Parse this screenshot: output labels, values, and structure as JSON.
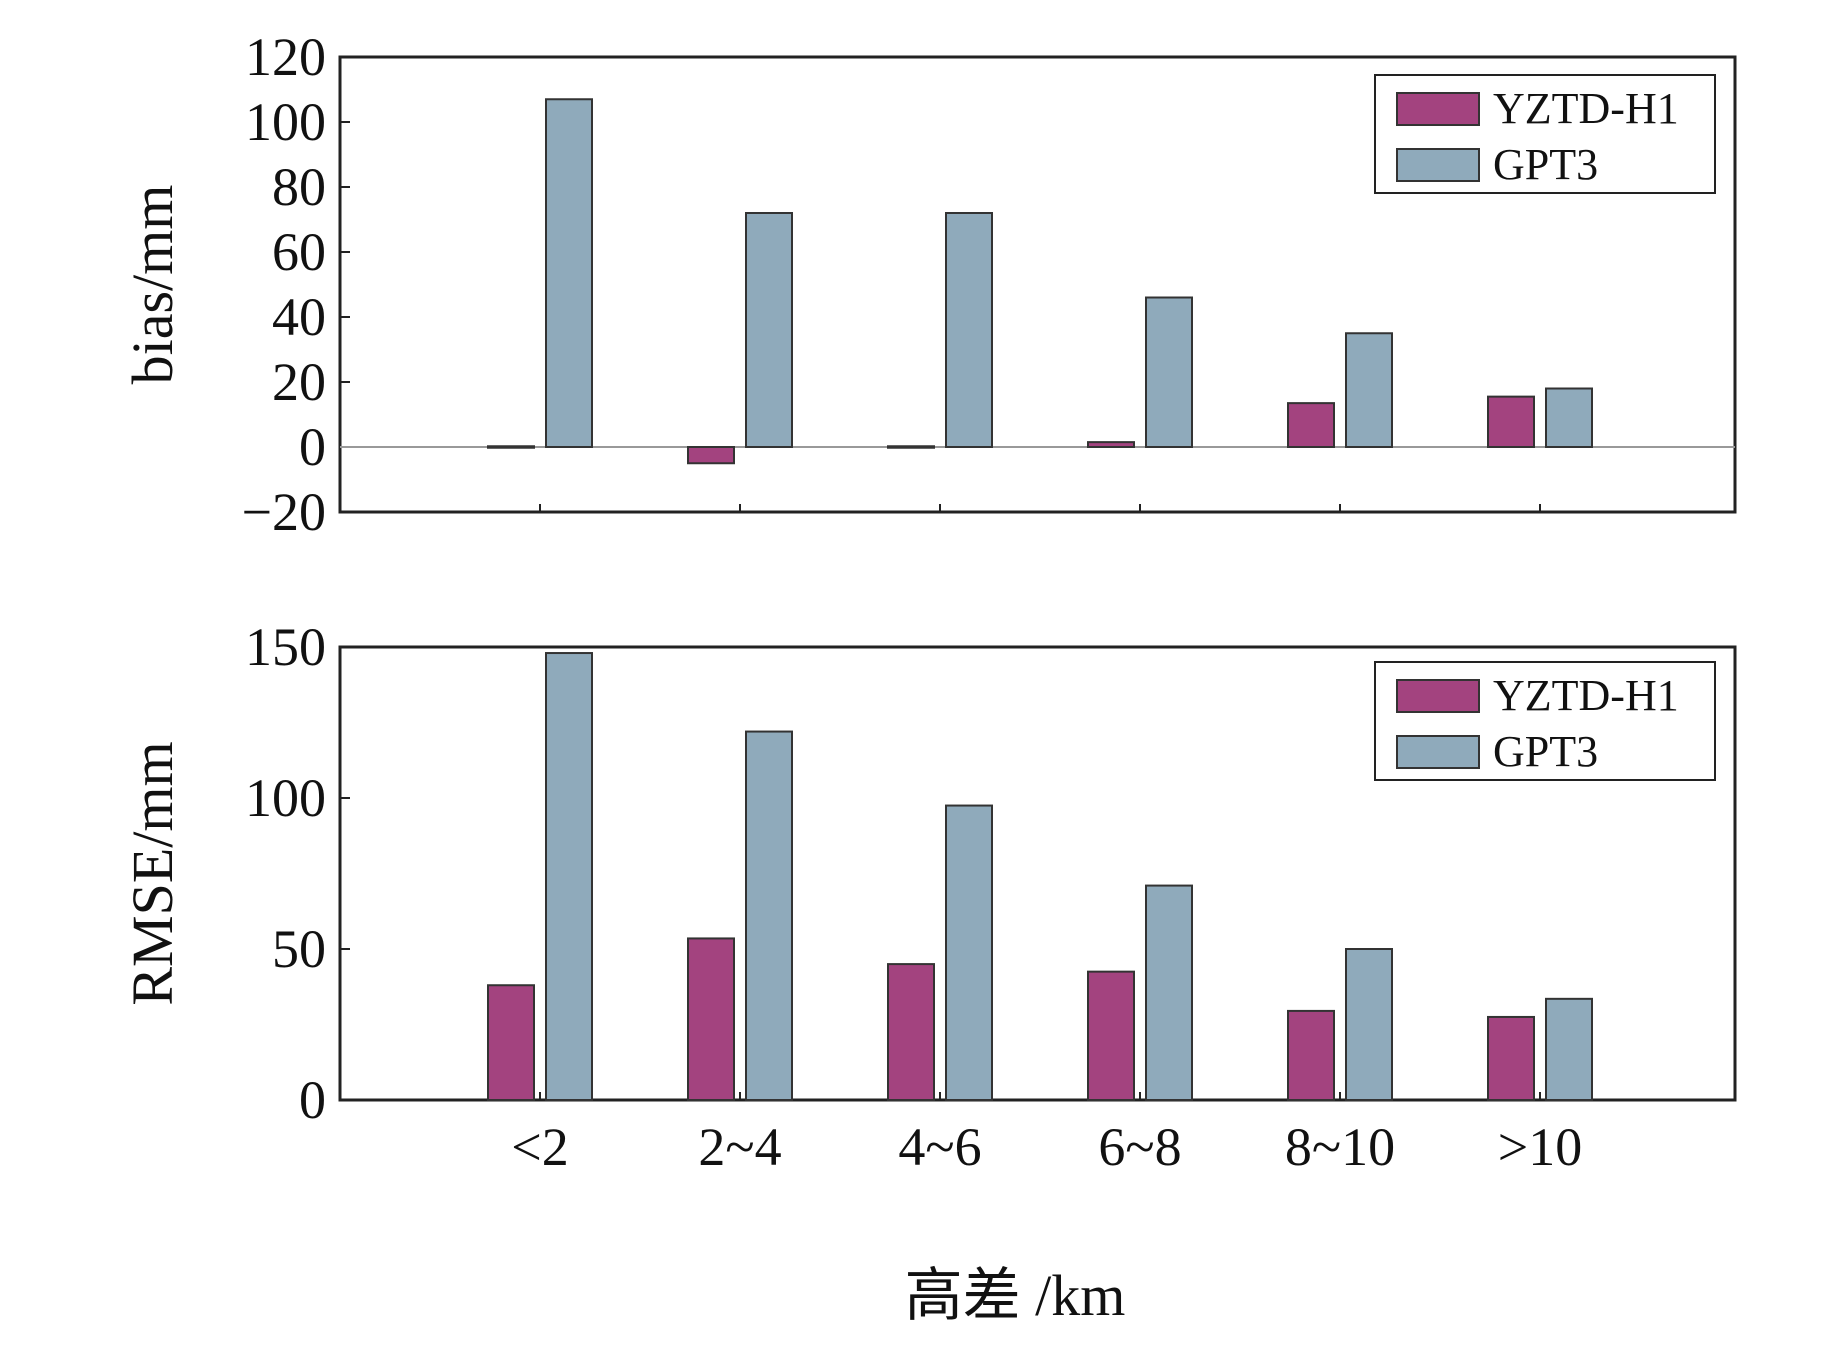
{
  "colors": {
    "YZTD-H1": "#a3437f",
    "GPT3": "#8faabb",
    "frame": "#222222",
    "zero_line": "#999999"
  },
  "x_axis": {
    "categories": [
      "<2",
      "2~4",
      "4~6",
      "6~8",
      "8~10",
      ">10"
    ],
    "label": "高差 /km"
  },
  "chart_data": [
    {
      "type": "bar",
      "name": "bias",
      "ylabel": "bias/mm",
      "ylim": [
        -20,
        120
      ],
      "yticks": [
        -20,
        0,
        20,
        40,
        60,
        80,
        100,
        120
      ],
      "ytick_labels": [
        "−20",
        "0",
        "20",
        "40",
        "60",
        "80",
        "100",
        "120"
      ],
      "categories": [
        "<2",
        "2~4",
        "4~6",
        "6~8",
        "8~10",
        ">10"
      ],
      "legend": "top-right",
      "grid": false,
      "zero_line": true,
      "series": [
        {
          "name": "YZTD-H1",
          "values": [
            0,
            -5,
            0,
            1.5,
            13.5,
            15.5
          ]
        },
        {
          "name": "GPT3",
          "values": [
            107,
            72,
            72,
            46,
            35,
            18
          ]
        }
      ]
    },
    {
      "type": "bar",
      "name": "rmse",
      "ylabel": "RMSE/mm",
      "ylim": [
        0,
        150
      ],
      "yticks": [
        0,
        50,
        100,
        150
      ],
      "ytick_labels": [
        "0",
        "50",
        "100",
        "150"
      ],
      "categories": [
        "<2",
        "2~4",
        "4~6",
        "6~8",
        "8~10",
        ">10"
      ],
      "xlabel": "高差 /km",
      "legend": "top-right",
      "grid": false,
      "series": [
        {
          "name": "YZTD-H1",
          "values": [
            38,
            53.5,
            45,
            42.5,
            29.5,
            27.5
          ]
        },
        {
          "name": "GPT3",
          "values": [
            148,
            122,
            97.5,
            71,
            50,
            33.5
          ]
        }
      ]
    }
  ]
}
